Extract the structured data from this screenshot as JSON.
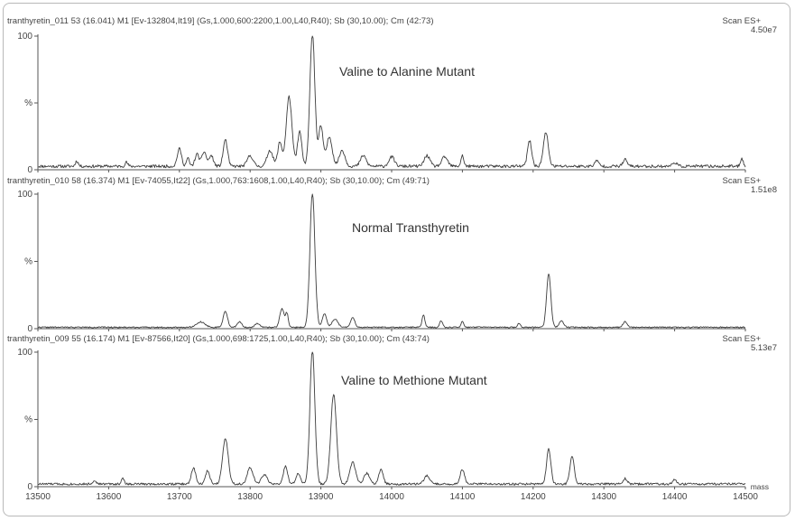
{
  "chart_data": {
    "type": "line",
    "xlabel": "mass",
    "xlim": [
      13500,
      14500
    ],
    "x_ticks": [
      "13500",
      "13600",
      "13700",
      "13800",
      "13900",
      "14000",
      "14100",
      "14200",
      "14300",
      "14400",
      "14500"
    ],
    "panels": [
      {
        "header": "tranthyretin_011 53 (16.041) M1 [Ev-132804,It19] (Gs,1.000,600:2200,1.00,L40,R40); Sb (30,10.00); Cm (42:73)",
        "scan_label": "Scan ES+",
        "scale": "4.50e7",
        "title": "Valine to Alanine Mutant",
        "y_label": "%",
        "y_ticks": [
          "100",
          "0"
        ],
        "ylim": [
          0,
          100
        ],
        "baseline": 1.5,
        "noise": 2.2,
        "seed": 11,
        "peaks": [
          {
            "x": 13555,
            "y": 4,
            "w": 2
          },
          {
            "x": 13625,
            "y": 3,
            "w": 2
          },
          {
            "x": 13700,
            "y": 13,
            "w": 3
          },
          {
            "x": 13712,
            "y": 6,
            "w": 2
          },
          {
            "x": 13725,
            "y": 9,
            "w": 3
          },
          {
            "x": 13735,
            "y": 11,
            "w": 3
          },
          {
            "x": 13745,
            "y": 8,
            "w": 3
          },
          {
            "x": 13765,
            "y": 20,
            "w": 3
          },
          {
            "x": 13800,
            "y": 8,
            "w": 4
          },
          {
            "x": 13828,
            "y": 12,
            "w": 4
          },
          {
            "x": 13842,
            "y": 18,
            "w": 3
          },
          {
            "x": 13855,
            "y": 52,
            "w": 4
          },
          {
            "x": 13870,
            "y": 26,
            "w": 3
          },
          {
            "x": 13888,
            "y": 100,
            "w": 3.5
          },
          {
            "x": 13900,
            "y": 30,
            "w": 3
          },
          {
            "x": 13912,
            "y": 22,
            "w": 4
          },
          {
            "x": 13930,
            "y": 12,
            "w": 4
          },
          {
            "x": 13960,
            "y": 8,
            "w": 4
          },
          {
            "x": 14000,
            "y": 7,
            "w": 4
          },
          {
            "x": 14050,
            "y": 8,
            "w": 4
          },
          {
            "x": 14075,
            "y": 7,
            "w": 4
          },
          {
            "x": 14100,
            "y": 8,
            "w": 2
          },
          {
            "x": 14195,
            "y": 19,
            "w": 3
          },
          {
            "x": 14218,
            "y": 25,
            "w": 3.5
          },
          {
            "x": 14290,
            "y": 4,
            "w": 3
          },
          {
            "x": 14330,
            "y": 5,
            "w": 3
          },
          {
            "x": 14400,
            "y": 3,
            "w": 3
          },
          {
            "x": 14495,
            "y": 6,
            "w": 2
          }
        ]
      },
      {
        "header": "tranthyretin_010 58 (16.374) M1 [Ev-74055,It22] (Gs,1.000,763:1608,1.00,L40,R40); Sb (30,10.00); Cm (49:71)",
        "scan_label": "Scan ES+",
        "scale": "1.51e8",
        "title": "Normal Transthyretin",
        "y_label": "%",
        "y_ticks": [
          "100",
          "0"
        ],
        "ylim": [
          0,
          100
        ],
        "baseline": 0.6,
        "noise": 0.9,
        "seed": 22,
        "peaks": [
          {
            "x": 13730,
            "y": 4,
            "w": 6
          },
          {
            "x": 13765,
            "y": 12,
            "w": 3
          },
          {
            "x": 13785,
            "y": 4,
            "w": 3
          },
          {
            "x": 13810,
            "y": 3,
            "w": 3
          },
          {
            "x": 13845,
            "y": 14,
            "w": 3
          },
          {
            "x": 13852,
            "y": 10,
            "w": 2
          },
          {
            "x": 13888,
            "y": 100,
            "w": 3.5
          },
          {
            "x": 13905,
            "y": 10,
            "w": 3
          },
          {
            "x": 13920,
            "y": 6,
            "w": 4
          },
          {
            "x": 13945,
            "y": 7,
            "w": 3
          },
          {
            "x": 14045,
            "y": 9,
            "w": 2
          },
          {
            "x": 14070,
            "y": 5,
            "w": 2
          },
          {
            "x": 14100,
            "y": 4,
            "w": 2
          },
          {
            "x": 14180,
            "y": 3,
            "w": 2
          },
          {
            "x": 14222,
            "y": 40,
            "w": 3
          },
          {
            "x": 14240,
            "y": 5,
            "w": 3
          },
          {
            "x": 14330,
            "y": 4,
            "w": 3
          }
        ]
      },
      {
        "header": "tranthyretin_009 55 (16.174) M1 [Ev-87566,It20] (Gs,1.000,698:1725,1.00,L40,R40); Sb (30,10.00); Cm (43:74)",
        "scan_label": "Scan ES+",
        "scale": "5.13e7",
        "title": "Valine to Methione Mutant",
        "y_label": "%",
        "y_ticks": [
          "100",
          "0"
        ],
        "ylim": [
          0,
          100
        ],
        "baseline": 1.2,
        "noise": 1.6,
        "seed": 33,
        "peaks": [
          {
            "x": 13580,
            "y": 3,
            "w": 2
          },
          {
            "x": 13620,
            "y": 4,
            "w": 2
          },
          {
            "x": 13720,
            "y": 12,
            "w": 3
          },
          {
            "x": 13740,
            "y": 10,
            "w": 3
          },
          {
            "x": 13765,
            "y": 34,
            "w": 4
          },
          {
            "x": 13800,
            "y": 12,
            "w": 4
          },
          {
            "x": 13820,
            "y": 7,
            "w": 4
          },
          {
            "x": 13850,
            "y": 13,
            "w": 3
          },
          {
            "x": 13868,
            "y": 8,
            "w": 3
          },
          {
            "x": 13888,
            "y": 100,
            "w": 3.5
          },
          {
            "x": 13918,
            "y": 67,
            "w": 4
          },
          {
            "x": 13945,
            "y": 16,
            "w": 4
          },
          {
            "x": 13965,
            "y": 8,
            "w": 4
          },
          {
            "x": 13985,
            "y": 11,
            "w": 3
          },
          {
            "x": 14050,
            "y": 6,
            "w": 4
          },
          {
            "x": 14100,
            "y": 11,
            "w": 3
          },
          {
            "x": 14222,
            "y": 26,
            "w": 3
          },
          {
            "x": 14255,
            "y": 21,
            "w": 3
          },
          {
            "x": 14330,
            "y": 4,
            "w": 3
          },
          {
            "x": 14400,
            "y": 3,
            "w": 3
          }
        ]
      }
    ]
  }
}
